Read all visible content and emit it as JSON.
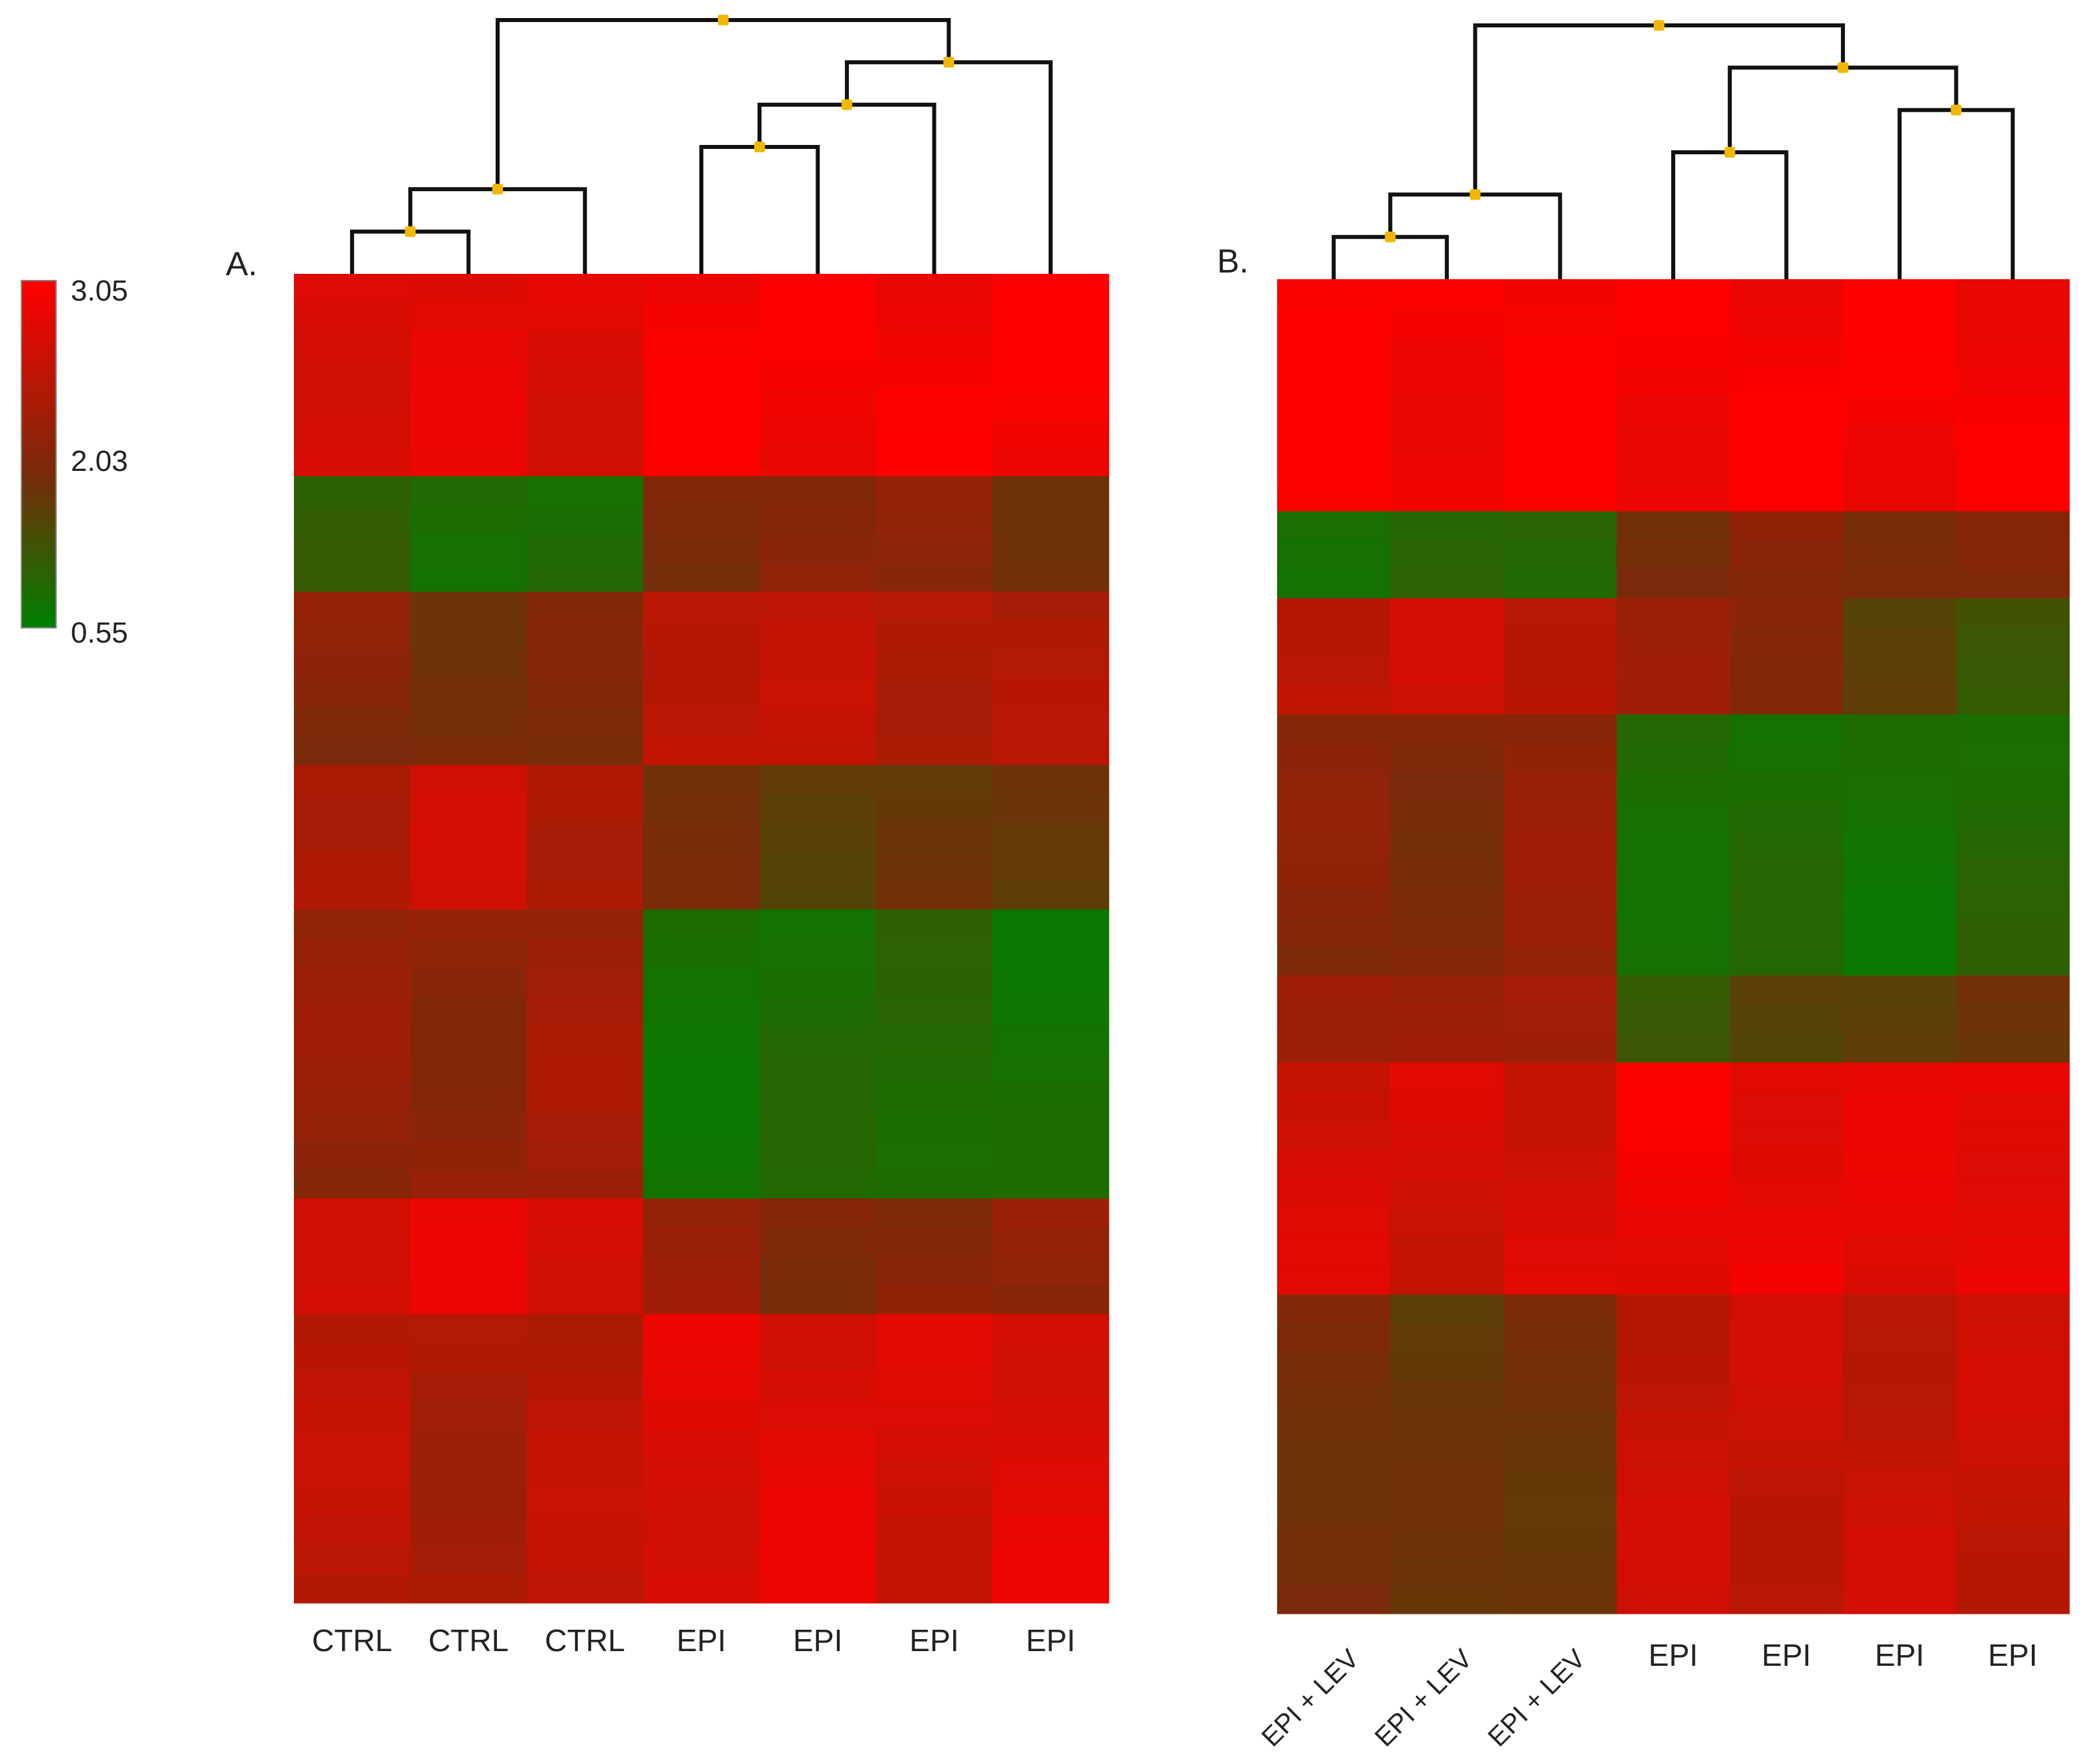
{
  "colors": {
    "high": "#ff0000",
    "mid": "#7a2a0a",
    "low": "#008000",
    "dendrogram": "#111111",
    "node": "#f2b705"
  },
  "legend": {
    "max_label": "3.05",
    "mid_label": "2.03",
    "min_label": "0.55",
    "max": 3.05,
    "mid": 2.03,
    "min": 0.55
  },
  "chart_data": [
    {
      "type": "heatmap",
      "panel_label": "A.",
      "columns": [
        "CTRL",
        "CTRL",
        "CTRL",
        "EPI",
        "EPI",
        "EPI",
        "EPI"
      ],
      "row_count": 46,
      "value_range": [
        0.55,
        3.05
      ],
      "clusters": [
        [
          "CTRL",
          "CTRL",
          "CTRL"
        ],
        [
          "EPI",
          "EPI",
          "EPI",
          "EPI"
        ]
      ],
      "dendrogram": {
        "leaves": 7,
        "merges": [
          [
            0,
            1
          ],
          [
            7,
            2
          ],
          [
            3,
            4
          ],
          [
            9,
            5
          ],
          [
            10,
            6
          ],
          [
            8,
            11
          ]
        ]
      },
      "row_blocks": [
        {
          "rows": 7,
          "values": [
            2.8,
            2.8,
            2.8,
            3.0,
            3.0,
            3.0,
            3.0
          ]
        },
        {
          "rows": 4,
          "values": [
            1.1,
            0.9,
            0.9,
            2.0,
            2.2,
            2.1,
            2.0
          ]
        },
        {
          "rows": 6,
          "values": [
            2.1,
            2.0,
            2.0,
            2.6,
            2.5,
            2.5,
            2.4
          ]
        },
        {
          "rows": 5,
          "values": [
            2.5,
            2.6,
            2.5,
            1.9,
            1.7,
            1.8,
            1.8
          ]
        },
        {
          "rows": 10,
          "values": [
            2.2,
            2.2,
            2.3,
            0.8,
            0.9,
            1.0,
            0.8
          ]
        },
        {
          "rows": 4,
          "values": [
            2.8,
            2.8,
            2.8,
            2.2,
            2.1,
            2.1,
            2.2
          ]
        },
        {
          "rows": 10,
          "values": [
            2.5,
            2.4,
            2.5,
            2.8,
            2.8,
            2.7,
            2.8
          ]
        }
      ]
    },
    {
      "type": "heatmap",
      "panel_label": "B.",
      "columns": [
        "EPI + LEV",
        "EPI + LEV",
        "EPI + LEV",
        "EPI",
        "EPI",
        "EPI",
        "EPI"
      ],
      "row_count": 46,
      "value_range": [
        0.55,
        3.05
      ],
      "clusters": [
        [
          "EPI + LEV",
          "EPI + LEV",
          "EPI + LEV"
        ],
        [
          "EPI",
          "EPI",
          "EPI",
          "EPI"
        ]
      ],
      "dendrogram": {
        "leaves": 7,
        "merges": [
          [
            0,
            1
          ],
          [
            7,
            2
          ],
          [
            3,
            4
          ],
          [
            5,
            6
          ],
          [
            9,
            10
          ],
          [
            8,
            11
          ]
        ]
      },
      "row_blocks": [
        {
          "rows": 8,
          "values": [
            3.0,
            3.0,
            3.0,
            3.0,
            3.0,
            3.0,
            3.0
          ]
        },
        {
          "rows": 3,
          "values": [
            0.9,
            1.0,
            1.0,
            2.0,
            2.1,
            2.1,
            2.0
          ]
        },
        {
          "rows": 4,
          "values": [
            2.6,
            2.6,
            2.6,
            2.2,
            2.2,
            1.6,
            1.3
          ]
        },
        {
          "rows": 9,
          "values": [
            2.1,
            2.1,
            2.2,
            0.9,
            0.9,
            0.8,
            1.0
          ]
        },
        {
          "rows": 3,
          "values": [
            2.4,
            2.2,
            2.4,
            1.2,
            1.6,
            1.7,
            1.8
          ]
        },
        {
          "rows": 8,
          "values": [
            2.7,
            2.7,
            2.7,
            2.9,
            2.9,
            2.8,
            2.9
          ]
        },
        {
          "rows": 11,
          "values": [
            2.0,
            1.8,
            1.9,
            2.6,
            2.6,
            2.6,
            2.6
          ]
        }
      ]
    }
  ]
}
